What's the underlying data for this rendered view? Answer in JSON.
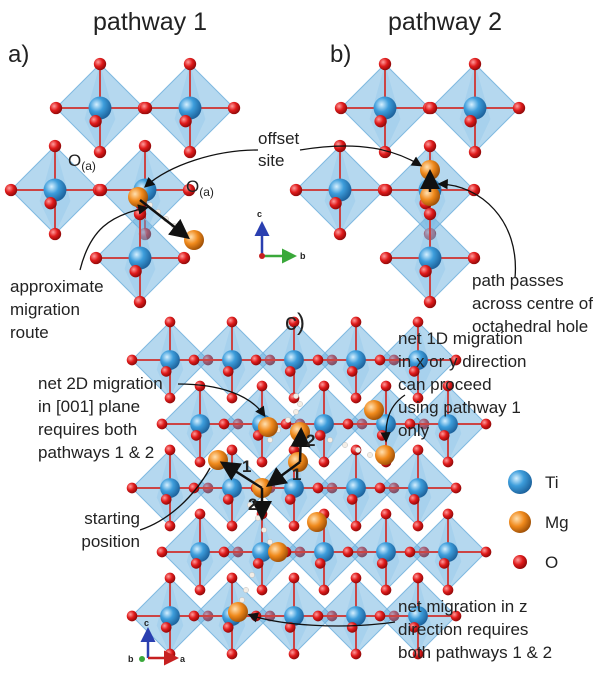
{
  "panels": {
    "a": {
      "title": "pathway 1",
      "label": "a)",
      "atom_labels": [
        {
          "base": "O",
          "sub": "(a)"
        },
        {
          "base": "O",
          "sub": "(a)"
        }
      ],
      "callout": [
        "approximate",
        "migration",
        "route"
      ],
      "axes": [
        "c",
        "b"
      ]
    },
    "b": {
      "title": "pathway 2",
      "label": "b)",
      "callout": [
        "path passes",
        "across centre of",
        "octahedral hole"
      ]
    },
    "shared_callout": [
      "offset",
      "site"
    ],
    "c": {
      "label": "c)",
      "callouts": [
        [
          "net 2D migration",
          "in [001] plane",
          "requires both",
          "pathways 1 & 2"
        ],
        [
          "net 1D migration",
          "in x or y direction",
          "can proceed",
          "using pathway 1",
          "only"
        ],
        [
          "starting",
          "position"
        ],
        [
          "net migration in z",
          "direction requires",
          "both pathways 1 & 2"
        ]
      ],
      "path_numbers": [
        "2",
        "1",
        "1",
        "2"
      ],
      "axes": [
        "c",
        "b",
        "a"
      ]
    }
  },
  "legend": [
    "Ti",
    "Mg",
    "O"
  ]
}
